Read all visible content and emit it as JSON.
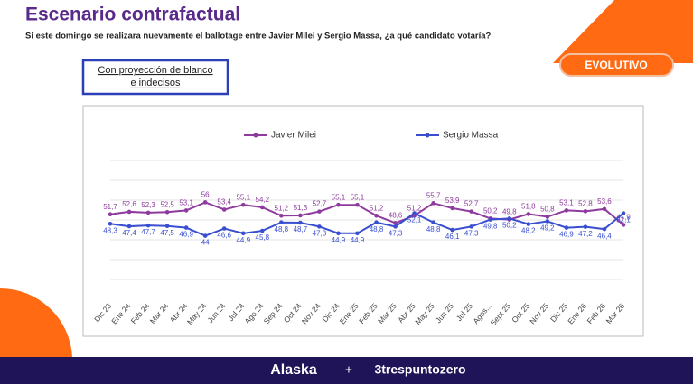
{
  "header": {
    "title": "Escenario contrafactual",
    "subtitle": "Si este domingo se realizara nuevamente el ballotage entre Javier Milei y Sergio Massa, ¿a qué candidato votaría?",
    "note": "Con proyección de blanco e indecisos",
    "button": "EVOLUTIVO"
  },
  "footer": {
    "brand1": "Alaska",
    "plus": "+",
    "brand2": "3trespuntozero"
  },
  "chart_data": {
    "type": "line",
    "categories": [
      "Dic 23",
      "Ene 24",
      "Feb 24",
      "Mar 24",
      "Abr 24",
      "May 24",
      "Jun 24",
      "Jul 24",
      "Ago 24",
      "Sep 24",
      "Oct 24",
      "Nov 24",
      "Dic 24",
      "Ene 25",
      "Feb 25",
      "Mar 25",
      "Abr 25",
      "May 25",
      "Jun 25",
      "Jul 25",
      "Agos...",
      "Sept 25",
      "Oct 25",
      "Nov 25",
      "Dic 25",
      "Ene 26",
      "Feb 26",
      "Mar 26"
    ],
    "ylim": [
      30,
      70
    ],
    "series": [
      {
        "name": "Javier Milei",
        "color": "#8e3a9e",
        "values": [
          51.7,
          52.6,
          52.3,
          52.5,
          53.1,
          56,
          53.4,
          55.1,
          54.2,
          51.2,
          51.3,
          52.7,
          55.1,
          55.1,
          51.2,
          48.6,
          51.2,
          55.7,
          53.9,
          52.7,
          50.2,
          49.8,
          51.8,
          50.8,
          53.1,
          52.8,
          53.6,
          47.9
        ],
        "value_labels": [
          "51,7",
          "52,6",
          "52,3",
          "52,5",
          "53,1",
          "56",
          "53,4",
          "55,1",
          "54,2",
          "51,2",
          "51,3",
          "52,7",
          "55,1",
          "55,1",
          "51,2",
          "48,6",
          "51,2",
          "55,7",
          "53,9",
          "52,7",
          "50,2",
          "49,8",
          "51,8",
          "50,8",
          "53,1",
          "52,8",
          "53,6",
          "47,9"
        ]
      },
      {
        "name": "Sergio Massa",
        "color": "#3a4fd0",
        "values": [
          48.3,
          47.4,
          47.7,
          47.5,
          46.9,
          44,
          46.6,
          44.9,
          45.8,
          48.8,
          48.7,
          47.3,
          44.9,
          44.9,
          48.8,
          47.3,
          52.1,
          48.8,
          46.1,
          47.3,
          49.8,
          50.2,
          48.2,
          49.2,
          46.9,
          47.2,
          46.4,
          52.1
        ],
        "value_labels": [
          "48,3",
          "47,4",
          "47,7",
          "47,5",
          "46,9",
          "44",
          "46,6",
          "44,9",
          "45,8",
          "48,8",
          "48,7",
          "47,3",
          "44,9",
          "44,9",
          "48,8",
          "47,3",
          "52,1",
          "48,8",
          "46,1",
          "47,3",
          "49,8",
          "50,2",
          "48,2",
          "49,2",
          "46,9",
          "47,2",
          "46,4",
          "52,1"
        ]
      }
    ]
  }
}
